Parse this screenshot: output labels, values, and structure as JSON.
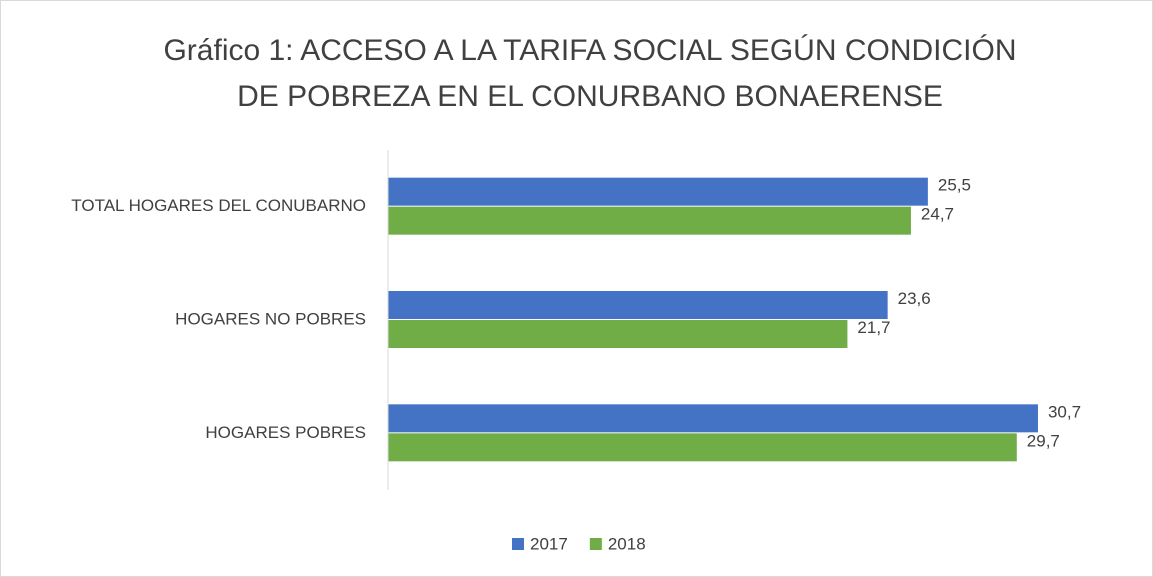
{
  "chart_data": {
    "type": "bar",
    "orientation": "horizontal",
    "title": [
      "Gráfico 1: ACCESO A LA TARIFA SOCIAL SEGÚN CONDICIÓN",
      "DE POBREZA EN EL CONURBANO BONAERENSE"
    ],
    "categories": [
      "TOTAL HOGARES DEL CONUBARNO",
      "HOGARES NO POBRES",
      "HOGARES POBRES"
    ],
    "series": [
      {
        "name": "2017",
        "color": "#4472c4",
        "values": [
          25.5,
          23.6,
          30.7
        ],
        "value_labels": [
          "25,5",
          "23,6",
          "30,7"
        ]
      },
      {
        "name": "2018",
        "color": "#70ad47",
        "values": [
          24.7,
          21.7,
          29.7
        ],
        "value_labels": [
          "24,7",
          "21,7",
          "29,7"
        ]
      }
    ],
    "xlim": [
      0,
      35
    ],
    "legend": "bottom"
  }
}
